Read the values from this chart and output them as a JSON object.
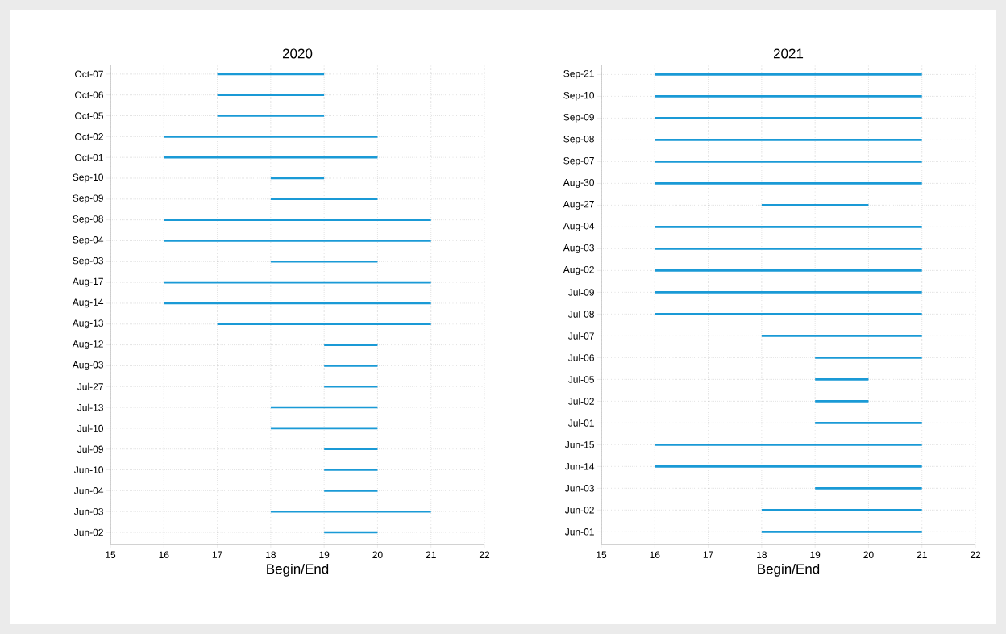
{
  "chart_data": [
    {
      "type": "bar",
      "orientation": "horizontal",
      "title": "2020",
      "xlabel": "Begin/End",
      "categories": [
        "Oct-07",
        "Oct-06",
        "Oct-05",
        "Oct-02",
        "Oct-01",
        "Sep-10",
        "Sep-09",
        "Sep-08",
        "Sep-04",
        "Sep-03",
        "Aug-17",
        "Aug-14",
        "Aug-13",
        "Aug-12",
        "Aug-03",
        "Jul-27",
        "Jul-13",
        "Jul-10",
        "Jul-09",
        "Jun-10",
        "Jun-04",
        "Jun-03",
        "Jun-02"
      ],
      "base": [
        17,
        17,
        17,
        16,
        16,
        18,
        18,
        16,
        16,
        18,
        16,
        16,
        17,
        19,
        19,
        19,
        18,
        18,
        19,
        19,
        19,
        18,
        19
      ],
      "values": [
        2,
        2,
        2,
        4,
        4,
        1,
        2,
        5,
        5,
        2,
        5,
        5,
        4,
        1,
        1,
        1,
        2,
        2,
        1,
        1,
        1,
        3,
        1
      ],
      "color": "#1a9ad6",
      "xlim": [
        15,
        22
      ],
      "xticks": [
        15,
        16,
        17,
        18,
        19,
        20,
        21,
        22
      ],
      "grid": true
    },
    {
      "type": "bar",
      "orientation": "horizontal",
      "title": "2021",
      "xlabel": "Begin/End",
      "categories": [
        "Sep-21",
        "Sep-10",
        "Sep-09",
        "Sep-08",
        "Sep-07",
        "Aug-30",
        "Aug-27",
        "Aug-04",
        "Aug-03",
        "Aug-02",
        "Jul-09",
        "Jul-08",
        "Jul-07",
        "Jul-06",
        "Jul-05",
        "Jul-02",
        "Jul-01",
        "Jun-15",
        "Jun-14",
        "Jun-03",
        "Jun-02",
        "Jun-01"
      ],
      "base": [
        16,
        16,
        16,
        16,
        16,
        16,
        18,
        16,
        16,
        16,
        16,
        16,
        18,
        19,
        19,
        19,
        19,
        16,
        16,
        19,
        18,
        18
      ],
      "values": [
        5,
        5,
        5,
        5,
        5,
        5,
        2,
        5,
        5,
        5,
        5,
        5,
        3,
        2,
        1,
        1,
        2,
        5,
        5,
        2,
        3,
        3
      ],
      "color": "#1a9ad6",
      "xlim": [
        15,
        22
      ],
      "xticks": [
        15,
        16,
        17,
        18,
        19,
        20,
        21,
        22
      ],
      "grid": true
    }
  ]
}
